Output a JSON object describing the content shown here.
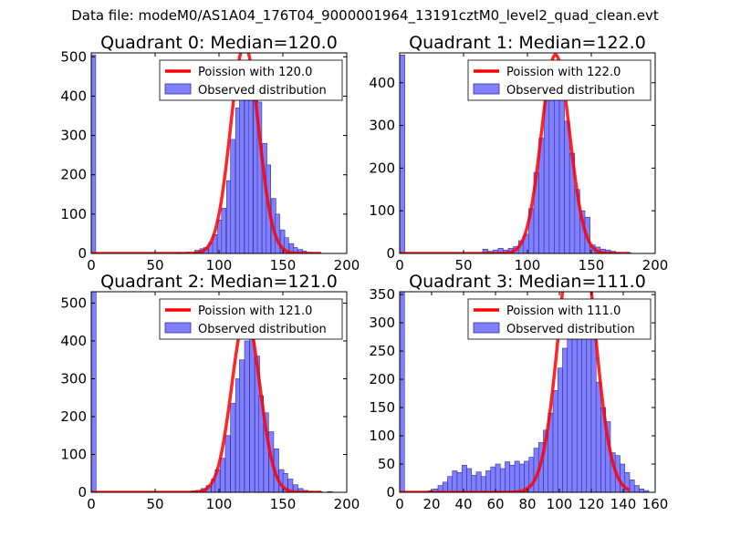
{
  "suptitle": "Data file: modeM0/AS1A04_176T04_9000001964_13191cztM0_level2_quad_clean.evt",
  "colors": {
    "poisson": "#ff0000",
    "bars": "#8080ff",
    "bar_edge": "#3030a0",
    "axes": "#000000"
  },
  "chart_data": [
    {
      "type": "bar",
      "title": "Quadrant 0: Median=120.0",
      "xlim": [
        0,
        200
      ],
      "ylim": [
        0,
        510
      ],
      "xticks": [
        0,
        50,
        100,
        150,
        200
      ],
      "yticks": [
        0,
        100,
        200,
        300,
        400,
        500
      ],
      "legend": [
        "Poission with 120.0",
        "Observed distribution"
      ],
      "legend_position": "top-right",
      "median": 120.0,
      "bin_width": 3.5,
      "bins": [
        [
          0,
          505
        ],
        [
          67,
          2
        ],
        [
          74,
          3
        ],
        [
          81,
          8
        ],
        [
          85,
          12
        ],
        [
          88,
          15
        ],
        [
          92,
          28
        ],
        [
          95,
          48
        ],
        [
          99,
          85
        ],
        [
          102,
          115
        ],
        [
          106,
          185
        ],
        [
          109,
          290
        ],
        [
          113,
          370
        ],
        [
          116,
          400
        ],
        [
          120,
          470
        ],
        [
          123,
          450
        ],
        [
          127,
          390
        ],
        [
          130,
          385
        ],
        [
          134,
          280
        ],
        [
          137,
          225
        ],
        [
          141,
          140
        ],
        [
          144,
          100
        ],
        [
          148,
          60
        ],
        [
          151,
          40
        ],
        [
          155,
          25
        ],
        [
          158,
          15
        ],
        [
          162,
          10
        ],
        [
          165,
          6
        ],
        [
          169,
          3
        ],
        [
          176,
          2
        ]
      ]
    },
    {
      "type": "bar",
      "title": "Quadrant 1: Median=122.0",
      "xlim": [
        0,
        200
      ],
      "ylim": [
        0,
        470
      ],
      "xticks": [
        0,
        50,
        100,
        150,
        200
      ],
      "yticks": [
        0,
        100,
        200,
        300,
        400
      ],
      "legend": [
        "Poission with 122.0",
        "Observed distribution"
      ],
      "legend_position": "top-right",
      "median": 122.0,
      "bin_width": 4.0,
      "bins": [
        [
          0,
          465
        ],
        [
          65,
          10
        ],
        [
          69,
          5
        ],
        [
          73,
          8
        ],
        [
          77,
          12
        ],
        [
          81,
          8
        ],
        [
          85,
          12
        ],
        [
          89,
          16
        ],
        [
          93,
          30
        ],
        [
          97,
          45
        ],
        [
          101,
          105
        ],
        [
          105,
          190
        ],
        [
          109,
          270
        ],
        [
          113,
          360
        ],
        [
          117,
          385
        ],
        [
          121,
          440
        ],
        [
          125,
          385
        ],
        [
          129,
          310
        ],
        [
          133,
          235
        ],
        [
          137,
          150
        ],
        [
          141,
          100
        ],
        [
          145,
          85
        ],
        [
          149,
          20
        ],
        [
          153,
          15
        ],
        [
          157,
          10
        ],
        [
          161,
          8
        ],
        [
          165,
          5
        ],
        [
          169,
          2
        ],
        [
          177,
          2
        ]
      ]
    },
    {
      "type": "bar",
      "title": "Quadrant 2: Median=121.0",
      "xlim": [
        0,
        200
      ],
      "ylim": [
        0,
        530
      ],
      "xticks": [
        0,
        50,
        100,
        150,
        200
      ],
      "yticks": [
        0,
        100,
        200,
        300,
        400,
        500
      ],
      "legend": [
        "Poission with 121.0",
        "Observed distribution"
      ],
      "legend_position": "top-right",
      "median": 121.0,
      "bin_width": 3.8,
      "bins": [
        [
          0,
          530
        ],
        [
          78,
          3
        ],
        [
          82,
          5
        ],
        [
          86,
          10
        ],
        [
          90,
          18
        ],
        [
          94,
          35
        ],
        [
          97,
          60
        ],
        [
          101,
          90
        ],
        [
          105,
          150
        ],
        [
          109,
          235
        ],
        [
          113,
          300
        ],
        [
          116,
          350
        ],
        [
          120,
          400
        ],
        [
          124,
          440
        ],
        [
          128,
          360
        ],
        [
          131,
          255
        ],
        [
          135,
          210
        ],
        [
          139,
          160
        ],
        [
          143,
          115
        ],
        [
          147,
          60
        ],
        [
          150,
          50
        ],
        [
          154,
          35
        ],
        [
          158,
          20
        ],
        [
          162,
          10
        ],
        [
          166,
          5
        ],
        [
          170,
          3
        ],
        [
          177,
          2
        ],
        [
          185,
          2
        ]
      ]
    },
    {
      "type": "bar",
      "title": "Quadrant 3: Median=111.0",
      "xlim": [
        0,
        160
      ],
      "ylim": [
        0,
        355
      ],
      "xticks": [
        0,
        20,
        40,
        60,
        80,
        100,
        120,
        140,
        160
      ],
      "yticks": [
        0,
        50,
        100,
        150,
        200,
        250,
        300,
        350
      ],
      "legend": [
        "Poission with 111.0",
        "Observed distribution"
      ],
      "legend_position": "top-right",
      "median": 111.0,
      "bin_width": 3.0,
      "bins": [
        [
          0,
          355
        ],
        [
          18,
          3
        ],
        [
          21,
          6
        ],
        [
          24,
          12
        ],
        [
          27,
          18
        ],
        [
          30,
          28
        ],
        [
          33,
          38
        ],
        [
          36,
          35
        ],
        [
          39,
          48
        ],
        [
          42,
          42
        ],
        [
          45,
          30
        ],
        [
          48,
          36
        ],
        [
          51,
          28
        ],
        [
          54,
          38
        ],
        [
          57,
          45
        ],
        [
          60,
          50
        ],
        [
          63,
          42
        ],
        [
          66,
          54
        ],
        [
          69,
          48
        ],
        [
          72,
          55
        ],
        [
          75,
          50
        ],
        [
          78,
          55
        ],
        [
          81,
          62
        ],
        [
          84,
          78
        ],
        [
          87,
          88
        ],
        [
          90,
          110
        ],
        [
          93,
          140
        ],
        [
          96,
          180
        ],
        [
          99,
          220
        ],
        [
          102,
          255
        ],
        [
          105,
          300
        ],
        [
          108,
          320
        ],
        [
          111,
          330
        ],
        [
          114,
          320
        ],
        [
          117,
          330
        ],
        [
          120,
          300
        ],
        [
          123,
          195
        ],
        [
          126,
          150
        ],
        [
          129,
          125
        ],
        [
          132,
          70
        ],
        [
          135,
          65
        ],
        [
          138,
          50
        ],
        [
          141,
          35
        ],
        [
          144,
          22
        ],
        [
          147,
          12
        ],
        [
          150,
          6
        ],
        [
          153,
          3
        ]
      ]
    }
  ]
}
